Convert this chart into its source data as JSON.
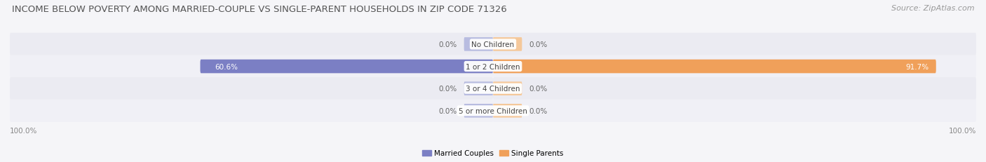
{
  "title": "INCOME BELOW POVERTY AMONG MARRIED-COUPLE VS SINGLE-PARENT HOUSEHOLDS IN ZIP CODE 71326",
  "source": "Source: ZipAtlas.com",
  "categories": [
    "No Children",
    "1 or 2 Children",
    "3 or 4 Children",
    "5 or more Children"
  ],
  "married_values": [
    0.0,
    60.6,
    0.0,
    0.0
  ],
  "single_values": [
    0.0,
    91.7,
    0.0,
    0.0
  ],
  "married_color": "#7b7fc4",
  "single_color": "#f0a05a",
  "married_color_light": "#b8bce0",
  "single_color_light": "#f5c89a",
  "bar_bg_color": "#e4e4ec",
  "row_bg_odd": "#ebebf2",
  "row_bg_even": "#f0f0f6",
  "axis_label_left": "100.0%",
  "axis_label_right": "100.0%",
  "xlim": 100,
  "legend_married": "Married Couples",
  "legend_single": "Single Parents",
  "title_fontsize": 9.5,
  "source_fontsize": 8,
  "label_fontsize": 7.5,
  "category_fontsize": 7.5,
  "bar_height": 0.62,
  "background_color": "#f5f5f8"
}
